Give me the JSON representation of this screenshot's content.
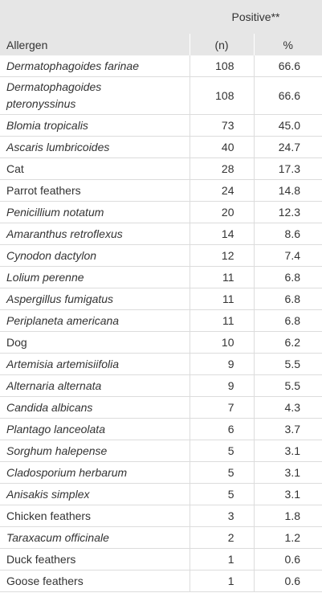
{
  "header": {
    "group_label": "Positive**",
    "col_allergen": "Allergen",
    "col_n": "(n)",
    "col_pct": "%"
  },
  "rows": [
    {
      "allergen": "Dermatophagoides farinae",
      "italic": true,
      "n": "108",
      "pct": "66.6"
    },
    {
      "allergen": "Dermatophagoides pteronyssinus",
      "italic": true,
      "n": "108",
      "pct": "66.6"
    },
    {
      "allergen": "Blomia tropicalis",
      "italic": true,
      "n": "73",
      "pct": "45.0"
    },
    {
      "allergen": "Ascaris lumbricoides",
      "italic": true,
      "n": "40",
      "pct": "24.7"
    },
    {
      "allergen": "Cat",
      "italic": false,
      "n": "28",
      "pct": "17.3"
    },
    {
      "allergen": "Parrot feathers",
      "italic": false,
      "n": "24",
      "pct": "14.8"
    },
    {
      "allergen": "Penicillium notatum",
      "italic": true,
      "n": "20",
      "pct": "12.3"
    },
    {
      "allergen": "Amaranthus retroflexus",
      "italic": true,
      "n": "14",
      "pct": "8.6"
    },
    {
      "allergen": "Cynodon dactylon",
      "italic": true,
      "n": "12",
      "pct": "7.4"
    },
    {
      "allergen": "Lolium perenne",
      "italic": true,
      "n": "11",
      "pct": "6.8"
    },
    {
      "allergen": "Aspergillus fumigatus",
      "italic": true,
      "n": "11",
      "pct": "6.8"
    },
    {
      "allergen": "Periplaneta americana",
      "italic": true,
      "n": "11",
      "pct": "6.8"
    },
    {
      "allergen": "Dog",
      "italic": false,
      "n": "10",
      "pct": "6.2"
    },
    {
      "allergen": "Artemisia artemisiifolia",
      "italic": true,
      "n": "9",
      "pct": "5.5"
    },
    {
      "allergen": "Alternaria alternata",
      "italic": true,
      "n": "9",
      "pct": "5.5"
    },
    {
      "allergen": "Candida albicans",
      "italic": true,
      "n": "7",
      "pct": "4.3"
    },
    {
      "allergen": "Plantago lanceolata",
      "italic": true,
      "n": "6",
      "pct": "3.7"
    },
    {
      "allergen": "Sorghum halepense",
      "italic": true,
      "n": "5",
      "pct": "3.1"
    },
    {
      "allergen": "Cladosporium herbarum",
      "italic": true,
      "n": "5",
      "pct": "3.1"
    },
    {
      "allergen": "Anisakis simplex",
      "italic": true,
      "n": "5",
      "pct": "3.1"
    },
    {
      "allergen": "Chicken feathers",
      "italic": false,
      "n": "3",
      "pct": "1.8"
    },
    {
      "allergen": "Taraxacum officinale",
      "italic": true,
      "n": "2",
      "pct": "1.2"
    },
    {
      "allergen": "Duck feathers",
      "italic": false,
      "n": "1",
      "pct": "0.6"
    },
    {
      "allergen": "Goose feathers",
      "italic": false,
      "n": "1",
      "pct": "0.6"
    }
  ]
}
